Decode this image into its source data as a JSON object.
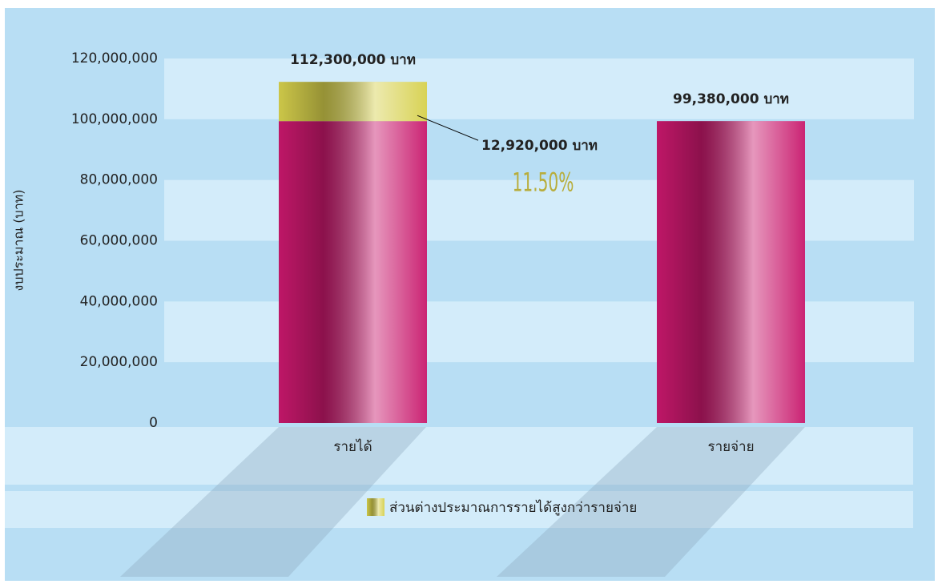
{
  "chart_data": {
    "type": "bar",
    "stacked": true,
    "y_label": "งบประมาณ (บาท)",
    "categories": [
      "รายได้",
      "รายจ่าย"
    ],
    "series": [
      {
        "color": "#c8186c",
        "values": [
          99380000,
          99380000
        ]
      },
      {
        "name": "ส่วนต่างประมาณการรายได้สูงกว่ารายจ่าย",
        "color": "#d6d04c",
        "values": [
          12920000,
          null
        ],
        "value_labels": [
          "12,920,000 บาท",
          null
        ]
      }
    ],
    "totals": [
      112300000,
      99380000
    ],
    "total_labels": [
      "112,300,000 บาท",
      "99,380,000 บาท"
    ],
    "annotation": "11.50%",
    "ylim": [
      0,
      120000000
    ],
    "yticks": [
      0,
      {
        "value": 20000000,
        "label": "20,000,000"
      },
      {
        "value": 40000000,
        "label": "40,000,000"
      },
      {
        "value": 60000000,
        "label": "60,000,000"
      },
      {
        "value": 80000000,
        "label": "80,000,000"
      },
      {
        "value": 100000000,
        "label": "100,000,000"
      },
      {
        "value": 120000000,
        "label": "120,000,000"
      }
    ],
    "stripes": true
  }
}
